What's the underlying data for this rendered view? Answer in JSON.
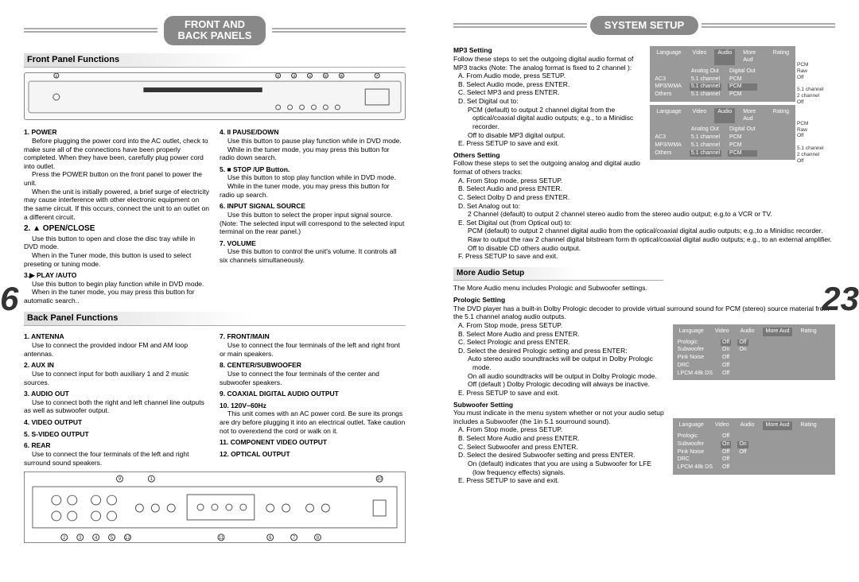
{
  "left_page": {
    "page_num": "6",
    "header": "FRONT AND\nBACK PANELS",
    "front_section_title": "Front Panel Functions",
    "back_section_title": "Back Panel Functions",
    "front_col1": {
      "h1": "1. POWER",
      "b1a": "Before plugging the power cord into the AC outlet, check to make sure all of the connections have been properly completed. When they have been, carefully plug power cord into outlet.",
      "b1b": "Press the POWER button on the front panel to power the unit.",
      "b1c": "When the unit is initially powered, a brief surge of electricity may cause interference with other electronic equipment on the same circuit. If this occurs, connect the unit to an outlet on a different circuit.",
      "h2": "2. ▲ OPEN/CLOSE",
      "b2a": "Use this button to open and close the disc tray while in DVD mode.",
      "b2b": "When in the Tuner mode, this button is used to select preseting or tuning mode.",
      "h3": "3.▶ PLAY /AUTO",
      "b3a": "Use this button to begin play function while in DVD mode.",
      "b3b": "When in the tuner mode, you may press this button for automatic search.."
    },
    "front_col2": {
      "h4": "4. II PAUSE/DOWN",
      "b4a": "Use this button to pause play function while in DVD mode.",
      "b4b": "While in the tuner mode, you may press this button for radio down search.",
      "h5": "5. ■ STOP /UP Button.",
      "b5a": "Use this button to stop play function while in DVD mode.",
      "b5b": "While in the tuner mode, you may press this button for radio up search.",
      "h6": "6. INPUT SIGNAL SOURCE",
      "b6a": "Use this button to select the proper input signal source. (Note: The selected input will correspond to the selected input terminal on the rear panel.)",
      "h7": "7. VOLUME",
      "b7a": "Use this button to control the unit's volume. It controls all six channels simultaneously."
    },
    "back_col1": {
      "h1": "1. ANTENNA",
      "b1": "Use to connect the provided indoor FM and AM loop antennas.",
      "h2": "2. AUX IN",
      "b2": "Use to connect input for both auxiliary 1 and 2 music sources.",
      "h3": "3. AUDIO OUT",
      "b3": "Use to connect both the right and left channel line outputs as well as subwoofer output.",
      "h4": "4. VIDEO OUTPUT",
      "h5": "5. S-VIDEO OUTPUT",
      "h6": "6. REAR",
      "b6": "Use to connect the four terminals of the left and right surround sound speakers."
    },
    "back_col2": {
      "h7": "7. FRONT/MAIN",
      "b7": "Use to connect the four terminals of the left and right front or main speakers.",
      "h8": "8. CENTER/SUBWOOFER",
      "b8": "Use to connect the four terminals of the center and subwoofer speakers.",
      "h9": "9. COAXIAL DIGITAL AUDIO OUTPUT",
      "h10": "10. 120V~60Hz",
      "b10": "This unit comes with an AC power cord. Be sure its prongs are dry before plugging it into an electrical outlet. Take caution not to overextend the cord or walk on it.",
      "h11": "11. COMPONENT VIDEO OUTPUT",
      "h12": "12. OPTICAL OUTPUT"
    }
  },
  "right_page": {
    "page_num": "23",
    "header": "SYSTEM SETUP",
    "mp3_head": "MP3 Setting",
    "mp3_intro": "Follow these steps to set the outgoing digital audio format of MP3 tracks (Note: The analog format is fixed to 2 channel ):",
    "mp3_a": "A.   From Audio mode, press SETUP.",
    "mp3_b": "B.   Select Audio mode, press ENTER.",
    "mp3_c": "C.   Select MP3 and press ENTER.",
    "mp3_d": "D.   Set Digital out to:",
    "mp3_d1": "PCM (default) to output 2 channel digital from the optical/coaxial digital audio outputs; e.g., to a Minidisc recorder.",
    "mp3_d2": "Off to disable MP3 digital output.",
    "mp3_e": "E.   Press SETUP to save and exit.",
    "others_head": "Others Setting",
    "others_intro": "Follow these steps to set the outgoing analog and digital audio format of others tracks:",
    "oth_a": "A.   From Stop mode, press SETUP.",
    "oth_b": "B.   Select Audio and press ENTER.",
    "oth_c": "C.   Select Dolby D and press ENTER.",
    "oth_d": "D.   Set Analog out to:",
    "oth_d1": "2 Channel (default) to output 2 channel stereo audio from the stereo audio output; e.g.to a VCR or TV.",
    "oth_e": "E.   Set Digital out (from Optical out) to:",
    "oth_e1": "PCM (default) to output 2 channel digital audio from the optical/coaxial digital audio outputs; e.g.,to a Minidisc recorder.",
    "oth_e2": "Raw to output the raw 2 channel digital bitstream form th optical/coaxial digital audio outputs; e.g., to an external amplifier.",
    "oth_e3": "Off to disable CD others audio output.",
    "oth_f": "F.   Press SETUP to save and exit.",
    "more_title": "More Audio Setup",
    "more_intro": "The More Audio menu includes Prologic and Subwoofer settings.",
    "pro_head": "Prologic Setting",
    "pro_intro": "The DVD player has a built-in Dolby Prologic decoder to provide virtual surround sound for PCM (stereo) source material from the 5.1 channel analog audio outputs.",
    "pro_a": "A.  From Stop mode, press SETUP.",
    "pro_b": "B.  Select More Audio and press ENTER.",
    "pro_c": "C.  Select Prologic and press ENTER.",
    "pro_d": "D.  Select the desired Prologic setting and press ENTER:",
    "pro_d1": "Auto stereo audio soundtracks will be output in Dolby Prologic mode.",
    "pro_d2": "On all audio soundtracks will be output in Dolby Prologic mode.",
    "pro_d3": "Off (default ) Dolby Prologic decoding will always be inactive.",
    "pro_e": "E.  Press SETUP to save and exit.",
    "sub_head": "Subwoofer Setting",
    "sub_intro": "You must indicate in the menu system whether or not your audio setup includes a Subwoofer (the 1in 5.1 sourround sound).",
    "sub_a": "A.  From Stop mode, press SETUP.",
    "sub_b": "B.  Select More Audio and press ENTER.",
    "sub_c": "C.  Select Subwoofer and press ENTER.",
    "sub_d": "D.  Select the desired Subwoofer setting and press ENTER.",
    "sub_d1": "On (default) indicates that you are using a Subwoofer for LFE (low frequency effects) signals.",
    "sub_e": "E.  Press SETUP to save and exit.",
    "menu1": {
      "tabs": [
        "Language",
        "Video",
        "Audio",
        "More Aud",
        "Rating"
      ],
      "active": "Audio",
      "col_labels": [
        "",
        "Analog Out",
        "Digital Out"
      ],
      "rows": [
        [
          "AC3",
          "5.1 channel",
          "PCM"
        ],
        [
          "MP3/WMA",
          "5.1 channel",
          "PCM"
        ],
        [
          "Others",
          "5.1 channel",
          "PCM"
        ]
      ],
      "hl_row": 1,
      "side": "PCM\nRaw\nOff\n\n5.1 channel\n2 channel\nOff"
    },
    "menu2": {
      "tabs": [
        "Language",
        "Video",
        "Audio",
        "More Aud",
        "Rating"
      ],
      "active": "Audio",
      "col_labels": [
        "",
        "Analog Out",
        "Digital Out"
      ],
      "rows": [
        [
          "AC3",
          "5.1 channel",
          "PCM"
        ],
        [
          "MP3/WMA",
          "5.1 channel",
          "PCM"
        ],
        [
          "Others",
          "5.1 channel",
          "PCM"
        ]
      ],
      "hl_row": 2,
      "side": "PCM\nRaw\nOff\n\n5.1 channel\n2 channel\nOff"
    },
    "menu3": {
      "tabs": [
        "Language",
        "Video",
        "Audio",
        "More Aud",
        "Rating"
      ],
      "active": "More Aud",
      "labels": [
        "Prologic",
        "Subwoofer",
        "Pink Noise",
        "DRC",
        "LPCM 48k DS"
      ],
      "vals1": [
        "Off",
        "On",
        "Off",
        "Off",
        "Off"
      ],
      "vals2": [
        "Off",
        "On",
        "",
        "",
        ""
      ],
      "hl_row": 0
    },
    "menu4": {
      "tabs": [
        "Language",
        "Video",
        "Audio",
        "More Aud",
        "Rating"
      ],
      "active": "More Aud",
      "labels": [
        "Prologic",
        "Subwoofer",
        "Pink Noise",
        "DRC",
        "LPCM 48k DS"
      ],
      "vals1": [
        "Off",
        "On",
        "Off",
        "Off",
        "Off"
      ],
      "vals2": [
        "",
        "On",
        "Off",
        "",
        ""
      ],
      "hl_row": 1
    }
  }
}
